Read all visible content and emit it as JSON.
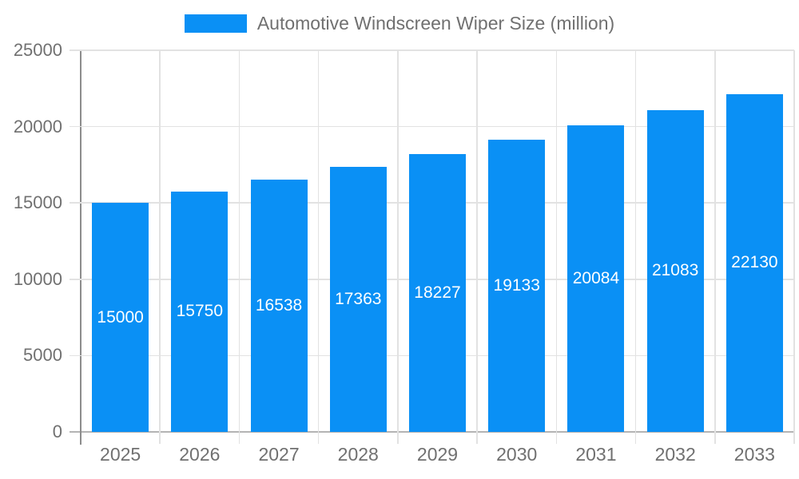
{
  "chart_data": {
    "type": "bar",
    "title": "Automotive Windscreen Wiper Size (million)",
    "categories": [
      "2025",
      "2026",
      "2027",
      "2028",
      "2029",
      "2030",
      "2031",
      "2032",
      "2033"
    ],
    "values": [
      15000,
      15750,
      16538,
      17363,
      18227,
      19133,
      20084,
      21083,
      22130
    ],
    "xlabel": "",
    "ylabel": "",
    "ylim": [
      0,
      25000
    ],
    "yticks": [
      0,
      5000,
      10000,
      15000,
      20000,
      25000
    ],
    "grid": true,
    "legend_position": "top-center",
    "value_labels": "inside-center-white",
    "colors": {
      "bar": "#0a90f5",
      "value_label": "#ffffff",
      "axis_text": "#707070",
      "gridline": "#e2e2e2",
      "y_axis_line": "#8c8c8c",
      "x_axis_line": "#b3b3b3",
      "background": "#ffffff"
    }
  }
}
